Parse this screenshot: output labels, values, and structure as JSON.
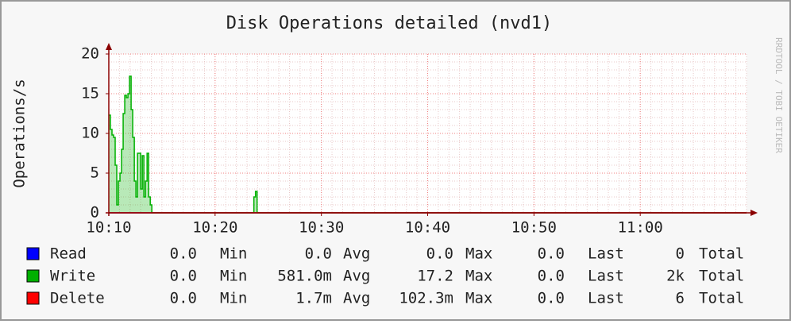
{
  "chart_data": {
    "type": "area",
    "title": "Disk Operations detailed (nvd1)",
    "ylabel": "Operations/s",
    "watermark": "RRDTOOL / TOBI OETIKER",
    "xlim": [
      610,
      670
    ],
    "xticks": [
      {
        "value": 610,
        "label": "10:10"
      },
      {
        "value": 620,
        "label": "10:20"
      },
      {
        "value": 630,
        "label": "10:30"
      },
      {
        "value": 640,
        "label": "10:40"
      },
      {
        "value": 650,
        "label": "10:50"
      },
      {
        "value": 660,
        "label": "11:00"
      }
    ],
    "ylim": [
      0,
      20
    ],
    "yticks": [
      0,
      5,
      10,
      15,
      20
    ],
    "grid": true,
    "x": [
      610,
      610.15,
      610.3,
      610.45,
      610.6,
      610.75,
      610.9,
      611.05,
      611.2,
      611.35,
      611.5,
      611.65,
      611.8,
      611.95,
      612.1,
      612.25,
      612.4,
      612.55,
      612.7,
      612.85,
      613,
      613.15,
      613.3,
      613.45,
      613.6,
      613.75,
      613.9,
      614.05,
      623.5,
      623.65,
      623.8,
      623.95,
      670
    ],
    "stat_labels": [
      "Min",
      "Avg",
      "Max",
      "Last",
      "Total"
    ],
    "series": [
      {
        "name": "Read",
        "color": "#0000ff",
        "values": [
          0,
          0,
          0,
          0,
          0,
          0,
          0,
          0,
          0,
          0,
          0,
          0,
          0,
          0,
          0,
          0,
          0,
          0,
          0,
          0,
          0,
          0,
          0,
          0,
          0,
          0,
          0,
          0,
          0,
          0,
          0,
          0,
          0
        ],
        "stats": [
          "0.0",
          "0.0",
          "0.0",
          "0.0",
          "0"
        ]
      },
      {
        "name": "Write",
        "color": "#00b000",
        "values": [
          12.3,
          10.5,
          9.8,
          9.5,
          6,
          1,
          4,
          5,
          8,
          12.5,
          14.8,
          14.5,
          15,
          17.2,
          13,
          9.5,
          4,
          2,
          7.5,
          7.5,
          3,
          7.2,
          2,
          4,
          7.5,
          2,
          1,
          0,
          0,
          2,
          2.7,
          0,
          0
        ],
        "stats": [
          "0.0",
          "581.0m",
          "17.2",
          "0.0",
          "2k"
        ]
      },
      {
        "name": "Delete",
        "color": "#ff0000",
        "values": [
          0,
          0,
          0,
          0,
          0,
          0,
          0,
          0,
          0,
          0,
          0,
          0,
          0,
          0,
          0,
          0,
          0,
          0,
          0,
          0,
          0,
          0,
          0,
          0,
          0,
          0,
          0,
          0,
          0,
          0,
          0,
          0,
          0
        ],
        "stats": [
          "0.0",
          "1.7m",
          "102.3m",
          "0.0",
          "6"
        ]
      }
    ]
  }
}
